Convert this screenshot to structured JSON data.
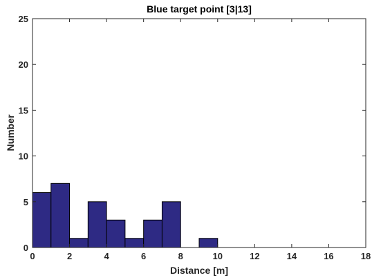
{
  "chart_data": {
    "type": "bar",
    "title": "Blue target point [3|13]",
    "xlabel": "Distance [m]",
    "ylabel": "Number",
    "xlim": [
      0,
      18
    ],
    "ylim": [
      0,
      25
    ],
    "xticks": [
      0,
      2,
      4,
      6,
      8,
      10,
      12,
      14,
      16,
      18
    ],
    "yticks": [
      0,
      5,
      10,
      15,
      20,
      25
    ],
    "bin_width": 1,
    "bins": [
      {
        "x_start": 0,
        "x_end": 1,
        "count": 6
      },
      {
        "x_start": 1,
        "x_end": 2,
        "count": 7
      },
      {
        "x_start": 2,
        "x_end": 3,
        "count": 1
      },
      {
        "x_start": 3,
        "x_end": 4,
        "count": 5
      },
      {
        "x_start": 4,
        "x_end": 5,
        "count": 3
      },
      {
        "x_start": 5,
        "x_end": 6,
        "count": 1
      },
      {
        "x_start": 6,
        "x_end": 7,
        "count": 3
      },
      {
        "x_start": 7,
        "x_end": 8,
        "count": 5
      },
      {
        "x_start": 8,
        "x_end": 9,
        "count": 0
      },
      {
        "x_start": 9,
        "x_end": 10,
        "count": 1
      }
    ],
    "bar_color": "#2e2a84",
    "edge_color": "#000000",
    "grid": false
  }
}
